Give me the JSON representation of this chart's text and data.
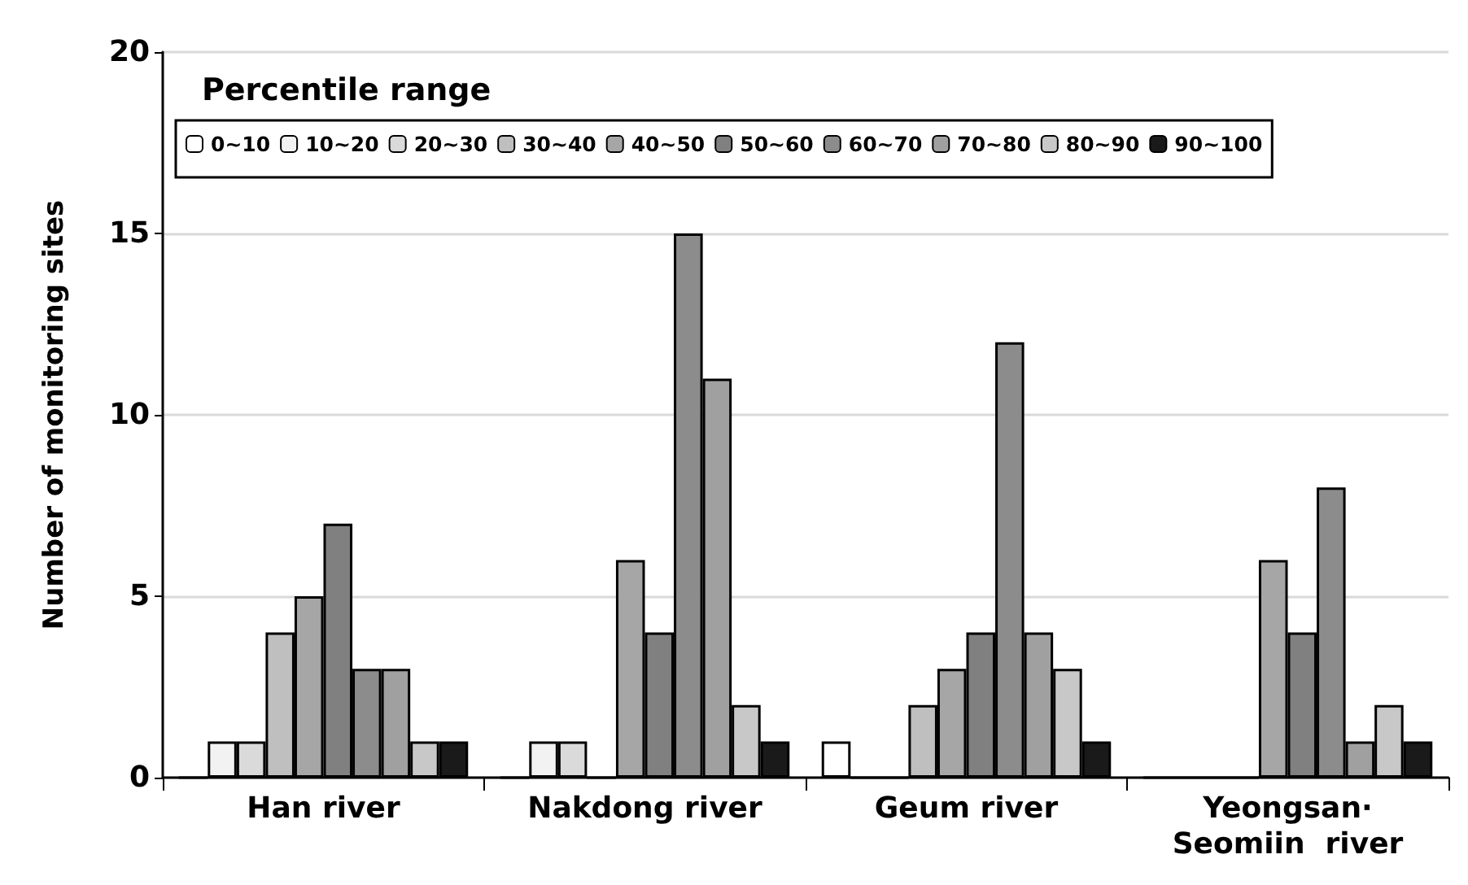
{
  "chart_data": {
    "type": "bar",
    "ylabel": "Number of monitoring sites",
    "legend_title": "Percentile range",
    "categories": [
      "Han river",
      "Nakdong river",
      "Geum river",
      "Yeongsan·\nSeomiin  river"
    ],
    "series": [
      {
        "name": "0~10",
        "color": "#ffffff",
        "values": [
          0,
          0,
          1,
          0
        ]
      },
      {
        "name": "10~20",
        "color": "#f2f2f2",
        "values": [
          1,
          1,
          0,
          0
        ]
      },
      {
        "name": "20~30",
        "color": "#dadada",
        "values": [
          1,
          1,
          0,
          0
        ]
      },
      {
        "name": "30~40",
        "color": "#bfbfbf",
        "values": [
          4,
          0,
          2,
          0
        ]
      },
      {
        "name": "40~50",
        "color": "#a6a6a6",
        "values": [
          5,
          6,
          3,
          6
        ]
      },
      {
        "name": "50~60",
        "color": "#808080",
        "values": [
          7,
          4,
          4,
          4
        ]
      },
      {
        "name": "60~70",
        "color": "#8c8c8c",
        "values": [
          3,
          15,
          12,
          8
        ]
      },
      {
        "name": "70~80",
        "color": "#a0a0a0",
        "values": [
          3,
          11,
          4,
          1
        ]
      },
      {
        "name": "80~90",
        "color": "#c8c8c8",
        "values": [
          1,
          2,
          3,
          2
        ]
      },
      {
        "name": "90~100",
        "color": "#1a1a1a",
        "values": [
          1,
          1,
          1,
          1
        ]
      }
    ],
    "ylim": [
      0,
      20
    ],
    "yticks": [
      0,
      5,
      10,
      15,
      20
    ],
    "grid": "y",
    "legend": "top"
  }
}
